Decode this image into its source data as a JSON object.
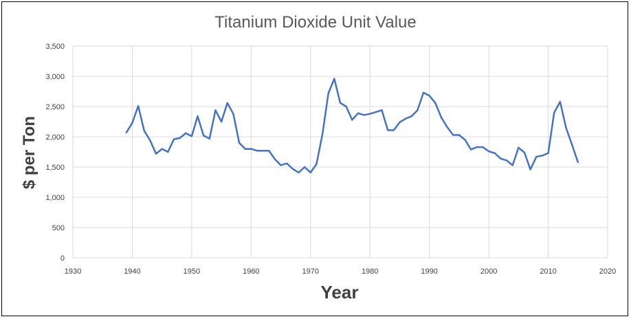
{
  "chart_data": {
    "type": "line",
    "title": "Titanium Dioxide Unit Value",
    "xlabel": "Year",
    "ylabel": "$ per Ton",
    "xlim": [
      1930,
      2020
    ],
    "ylim": [
      0,
      3500
    ],
    "x_ticks": [
      1930,
      1940,
      1950,
      1960,
      1970,
      1980,
      1990,
      2000,
      2010,
      2020
    ],
    "y_ticks": [
      0,
      500,
      1000,
      1500,
      2000,
      2500,
      3000,
      3500
    ],
    "y_tick_labels": [
      "0",
      "500",
      "1,000",
      "1,500",
      "2,000",
      "2,500",
      "3,000",
      "3,500"
    ],
    "grid": true,
    "legend": "none",
    "line_color": "#4472C4",
    "x": [
      1939,
      1940,
      1941,
      1942,
      1943,
      1944,
      1945,
      1946,
      1947,
      1948,
      1949,
      1950,
      1951,
      1952,
      1953,
      1954,
      1955,
      1956,
      1957,
      1958,
      1959,
      1960,
      1961,
      1962,
      1963,
      1964,
      1965,
      1966,
      1967,
      1968,
      1969,
      1970,
      1971,
      1972,
      1973,
      1974,
      1975,
      1976,
      1977,
      1978,
      1979,
      1980,
      1981,
      1982,
      1983,
      1984,
      1985,
      1986,
      1987,
      1988,
      1989,
      1990,
      1991,
      1992,
      1993,
      1994,
      1995,
      1996,
      1997,
      1998,
      1999,
      2000,
      2001,
      2002,
      2003,
      2004,
      2005,
      2006,
      2007,
      2008,
      2009,
      2010,
      2011,
      2012,
      2013,
      2014,
      2015
    ],
    "y": [
      2070,
      2230,
      2510,
      2100,
      1940,
      1720,
      1800,
      1750,
      1960,
      1980,
      2060,
      2010,
      2340,
      2020,
      1970,
      2440,
      2250,
      2560,
      2380,
      1900,
      1800,
      1800,
      1770,
      1770,
      1770,
      1630,
      1530,
      1560,
      1470,
      1410,
      1500,
      1410,
      1550,
      2040,
      2720,
      2960,
      2560,
      2500,
      2280,
      2390,
      2360,
      2380,
      2410,
      2440,
      2110,
      2110,
      2240,
      2300,
      2340,
      2440,
      2730,
      2680,
      2560,
      2320,
      2160,
      2030,
      2030,
      1950,
      1790,
      1830,
      1830,
      1760,
      1730,
      1640,
      1610,
      1530,
      1820,
      1740,
      1460,
      1670,
      1690,
      1730,
      2400,
      2580,
      2150,
      1870,
      1580
    ]
  }
}
